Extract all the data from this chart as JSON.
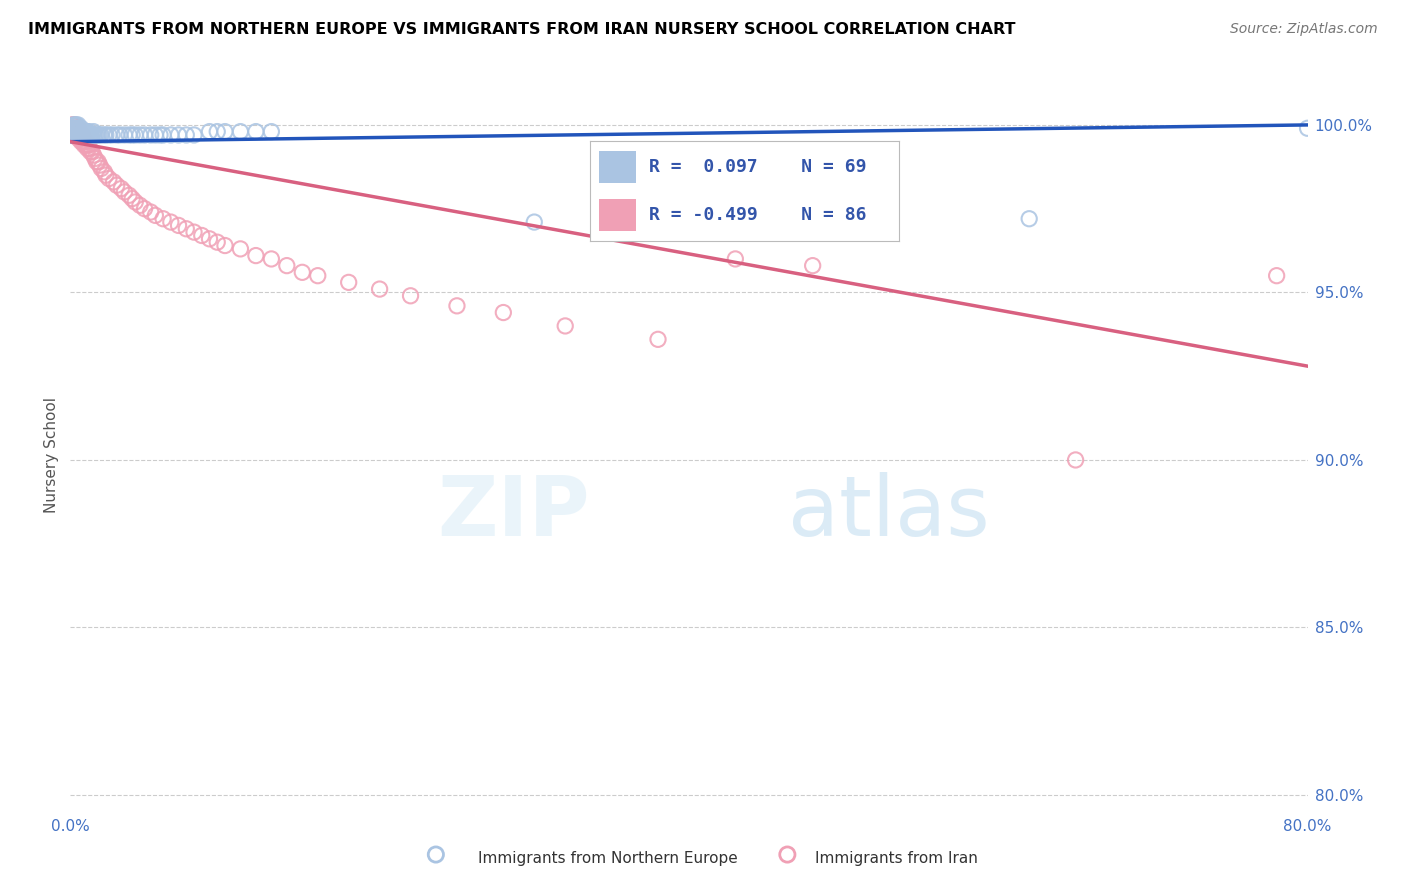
{
  "title": "IMMIGRANTS FROM NORTHERN EUROPE VS IMMIGRANTS FROM IRAN NURSERY SCHOOL CORRELATION CHART",
  "source": "Source: ZipAtlas.com",
  "ylabel": "Nursery School",
  "xlim": [
    0.0,
    0.8
  ],
  "ylim": [
    0.795,
    1.008
  ],
  "ytick_vals": [
    0.8,
    0.85,
    0.9,
    0.95,
    1.0
  ],
  "ytick_labels": [
    "80.0%",
    "85.0%",
    "90.0%",
    "95.0%",
    "100.0%"
  ],
  "xtick_vals": [
    0.0,
    0.2,
    0.4,
    0.6,
    0.8
  ],
  "xtick_labels": [
    "0.0%",
    "",
    "",
    "",
    "80.0%"
  ],
  "blue_R": 0.097,
  "blue_N": 69,
  "pink_R": -0.499,
  "pink_N": 86,
  "blue_color": "#aac4e2",
  "pink_color": "#f0a0b5",
  "blue_line_color": "#2255bb",
  "pink_line_color": "#d86080",
  "blue_line_x0": 0.0,
  "blue_line_y0": 0.995,
  "blue_line_x1": 0.8,
  "blue_line_y1": 1.0,
  "pink_line_x0": 0.0,
  "pink_line_y0": 0.995,
  "pink_line_x1": 0.8,
  "pink_line_y1": 0.928,
  "blue_scatter_x": [
    0.001,
    0.002,
    0.002,
    0.002,
    0.003,
    0.003,
    0.003,
    0.003,
    0.004,
    0.004,
    0.004,
    0.005,
    0.005,
    0.005,
    0.005,
    0.006,
    0.006,
    0.006,
    0.007,
    0.007,
    0.007,
    0.008,
    0.008,
    0.009,
    0.009,
    0.01,
    0.01,
    0.011,
    0.011,
    0.012,
    0.012,
    0.013,
    0.014,
    0.015,
    0.015,
    0.016,
    0.017,
    0.018,
    0.019,
    0.02,
    0.022,
    0.023,
    0.025,
    0.027,
    0.03,
    0.032,
    0.035,
    0.038,
    0.04,
    0.042,
    0.045,
    0.048,
    0.052,
    0.055,
    0.058,
    0.06,
    0.065,
    0.07,
    0.075,
    0.08,
    0.09,
    0.095,
    0.1,
    0.11,
    0.12,
    0.13,
    0.3,
    0.62,
    0.8
  ],
  "blue_scatter_y": [
    0.998,
    0.999,
    1.0,
    0.999,
    0.998,
    0.999,
    1.0,
    0.999,
    0.998,
    0.999,
    1.0,
    0.997,
    0.998,
    0.999,
    1.0,
    0.997,
    0.998,
    0.999,
    0.997,
    0.998,
    0.999,
    0.997,
    0.998,
    0.997,
    0.998,
    0.997,
    0.998,
    0.997,
    0.998,
    0.997,
    0.998,
    0.997,
    0.997,
    0.997,
    0.998,
    0.997,
    0.997,
    0.997,
    0.997,
    0.997,
    0.997,
    0.997,
    0.997,
    0.997,
    0.997,
    0.997,
    0.997,
    0.997,
    0.997,
    0.997,
    0.997,
    0.997,
    0.997,
    0.997,
    0.997,
    0.997,
    0.997,
    0.997,
    0.997,
    0.997,
    0.998,
    0.998,
    0.998,
    0.998,
    0.998,
    0.998,
    0.971,
    0.972,
    0.999
  ],
  "pink_scatter_x": [
    0.001,
    0.001,
    0.001,
    0.002,
    0.002,
    0.002,
    0.002,
    0.003,
    0.003,
    0.003,
    0.003,
    0.003,
    0.004,
    0.004,
    0.004,
    0.004,
    0.005,
    0.005,
    0.005,
    0.005,
    0.006,
    0.006,
    0.006,
    0.006,
    0.007,
    0.007,
    0.007,
    0.008,
    0.008,
    0.008,
    0.009,
    0.009,
    0.01,
    0.01,
    0.011,
    0.011,
    0.012,
    0.012,
    0.013,
    0.014,
    0.015,
    0.016,
    0.017,
    0.018,
    0.019,
    0.02,
    0.022,
    0.023,
    0.025,
    0.028,
    0.03,
    0.033,
    0.035,
    0.038,
    0.04,
    0.042,
    0.045,
    0.048,
    0.052,
    0.055,
    0.06,
    0.065,
    0.07,
    0.075,
    0.08,
    0.085,
    0.09,
    0.095,
    0.1,
    0.11,
    0.12,
    0.13,
    0.14,
    0.15,
    0.16,
    0.18,
    0.2,
    0.22,
    0.25,
    0.28,
    0.32,
    0.38,
    0.43,
    0.48,
    0.65,
    0.78
  ],
  "pink_scatter_y": [
    0.999,
    1.0,
    0.999,
    0.998,
    0.999,
    1.0,
    0.998,
    0.997,
    0.998,
    0.999,
    1.0,
    0.998,
    0.997,
    0.998,
    0.999,
    0.997,
    0.996,
    0.997,
    0.998,
    0.999,
    0.996,
    0.997,
    0.998,
    0.996,
    0.995,
    0.996,
    0.997,
    0.995,
    0.996,
    0.997,
    0.994,
    0.995,
    0.994,
    0.995,
    0.993,
    0.994,
    0.993,
    0.994,
    0.992,
    0.992,
    0.991,
    0.99,
    0.989,
    0.989,
    0.988,
    0.987,
    0.986,
    0.985,
    0.984,
    0.983,
    0.982,
    0.981,
    0.98,
    0.979,
    0.978,
    0.977,
    0.976,
    0.975,
    0.974,
    0.973,
    0.972,
    0.971,
    0.97,
    0.969,
    0.968,
    0.967,
    0.966,
    0.965,
    0.964,
    0.963,
    0.961,
    0.96,
    0.958,
    0.956,
    0.955,
    0.953,
    0.951,
    0.949,
    0.946,
    0.944,
    0.94,
    0.936,
    0.96,
    0.958,
    0.9,
    0.955
  ]
}
